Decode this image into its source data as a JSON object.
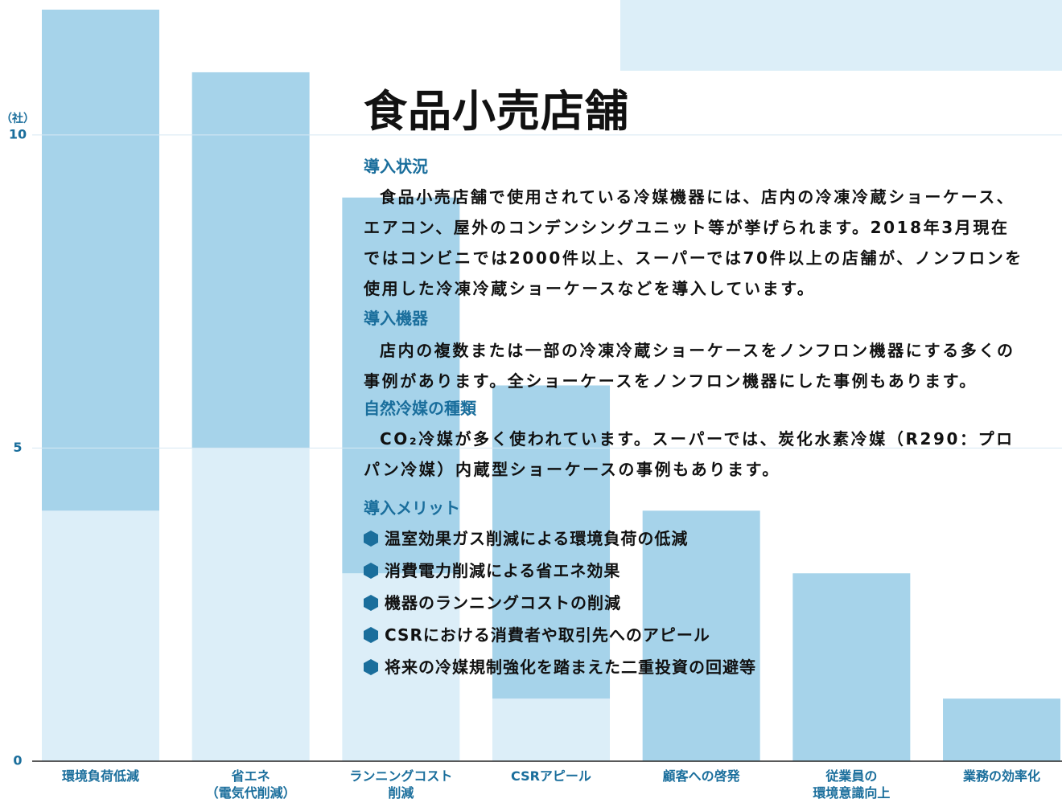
{
  "chart_data": {
    "type": "bar",
    "stacked": true,
    "y_unit": "（社）",
    "categories": [
      "環境負荷低減",
      "省エネ\n（電気代削減）",
      "ランニングコスト\n削減",
      "CSRアピール",
      "顧客への啓発",
      "従業員の\n環境意識向上",
      "業務の効率化"
    ],
    "series": [
      {
        "color": "#dceef8",
        "values": [
          4,
          5,
          3,
          1,
          0,
          0,
          0
        ]
      },
      {
        "color": "#a6d3ea",
        "values": [
          8,
          6,
          6,
          5,
          4,
          3,
          1
        ]
      }
    ],
    "ylim": [
      0,
      12
    ],
    "yticks": [
      0,
      5,
      10
    ],
    "grid": true
  },
  "document": {
    "title": "食品小売店舗",
    "sections": [
      {
        "heading": "導入状況",
        "text": "食品小売店舗で使用されている冷媒機器には、店内の冷凍冷蔵ショーケース、エアコン、屋外のコンデンシングユニット等が挙げられます。2018年3月現在ではコンビニでは2000件以上、スーパーでは70件以上の店舗が、ノンフロンを使用した冷凍冷蔵ショーケースなどを導入しています。"
      },
      {
        "heading": "導入機器",
        "text": "店内の複数または一部の冷凍冷蔵ショーケースをノンフロン機器にする多くの事例があります。全ショーケースをノンフロン機器にした事例もあります。"
      },
      {
        "heading": "自然冷媒の種類",
        "text": "CO₂冷媒が多く使われています。スーパーでは、炭化水素冷媒（R290：プロパン冷媒）内蔵型ショーケースの事例もあります。"
      }
    ],
    "merits": {
      "heading": "導入メリット",
      "items": [
        "温室効果ガス削減による環境負荷の低減",
        "消費電力削減による省エネ効果",
        "機器のランニングコストの削減",
        "CSRにおける消費者や取引先へのアピール",
        "将来の冷媒規制強化を踏まえた二重投資の回避等"
      ]
    }
  }
}
